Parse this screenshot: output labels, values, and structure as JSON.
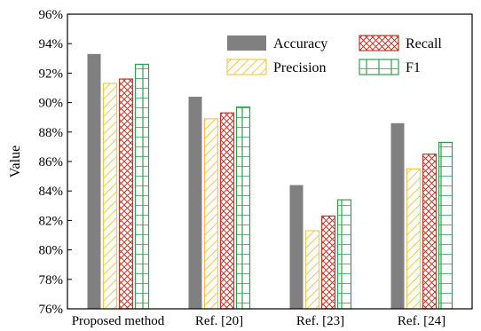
{
  "chart_data": {
    "type": "bar",
    "categories": [
      "Proposed method",
      "Ref. [20]",
      "Ref. [23]",
      "Ref. [24]"
    ],
    "series": [
      {
        "name": "Accuracy",
        "values": [
          93.3,
          90.4,
          84.4,
          88.6
        ],
        "color": "#808080",
        "pattern": "solid"
      },
      {
        "name": "Precision",
        "values": [
          91.3,
          88.9,
          81.3,
          85.5
        ],
        "color": "#f2c84b",
        "pattern": "diagonal"
      },
      {
        "name": "Recall",
        "values": [
          91.6,
          89.3,
          82.3,
          86.5
        ],
        "color": "#c0392b",
        "pattern": "crosshatch"
      },
      {
        "name": "F1",
        "values": [
          92.6,
          89.7,
          83.4,
          87.3
        ],
        "color": "#2e9e4f",
        "pattern": "grid"
      }
    ],
    "ylabel": "Value",
    "ylim": [
      76,
      96
    ],
    "yticks": [
      "76%",
      "78%",
      "80%",
      "82%",
      "84%",
      "86%",
      "88%",
      "90%",
      "92%",
      "94%",
      "96%"
    ],
    "grid": false,
    "legend": "top-right"
  }
}
